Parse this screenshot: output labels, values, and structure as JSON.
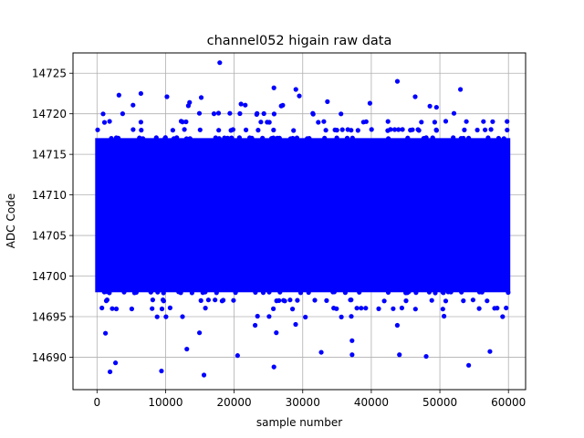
{
  "chart_data": {
    "type": "scatter",
    "title": "channel052 higain raw data",
    "xlabel": "sample number",
    "ylabel": "ADC Code",
    "xlim": [
      -3500,
      62500
    ],
    "ylim": [
      14686,
      14727.5
    ],
    "xticks": [
      0,
      10000,
      20000,
      30000,
      40000,
      50000,
      60000
    ],
    "yticks": [
      14690,
      14695,
      14700,
      14705,
      14710,
      14715,
      14720,
      14725
    ],
    "grid": true,
    "series": [
      {
        "color": "#0000ff",
        "marker": "circle",
        "x_range": [
          0,
          59999
        ],
        "dense_band": [
          14698,
          14717
        ],
        "outliers": [
          {
            "x": 17900,
            "y": 14726.3
          },
          {
            "x": 43800,
            "y": 14724.0
          },
          {
            "x": 25800,
            "y": 14723.2
          },
          {
            "x": 29000,
            "y": 14723.0
          },
          {
            "x": 53000,
            "y": 14723.0
          },
          {
            "x": 3200,
            "y": 14722.3
          },
          {
            "x": 6400,
            "y": 14722.5
          },
          {
            "x": 10200,
            "y": 14722.1
          },
          {
            "x": 15200,
            "y": 14722.0
          },
          {
            "x": 46400,
            "y": 14722.1
          },
          {
            "x": 29500,
            "y": 14722.2
          },
          {
            "x": 33600,
            "y": 14721.5
          },
          {
            "x": 39800,
            "y": 14721.3
          },
          {
            "x": 13500,
            "y": 14721.4
          },
          {
            "x": 21000,
            "y": 14721.2
          },
          {
            "x": 49500,
            "y": 14720.8
          },
          {
            "x": 1900,
            "y": 14688.2
          },
          {
            "x": 9400,
            "y": 14688.3
          },
          {
            "x": 15600,
            "y": 14687.8
          },
          {
            "x": 25800,
            "y": 14688.8
          },
          {
            "x": 54200,
            "y": 14689.0
          },
          {
            "x": 2700,
            "y": 14689.3
          },
          {
            "x": 20500,
            "y": 14690.2
          },
          {
            "x": 37200,
            "y": 14690.3
          },
          {
            "x": 44100,
            "y": 14690.3
          },
          {
            "x": 32700,
            "y": 14690.6
          },
          {
            "x": 13100,
            "y": 14691.0
          },
          {
            "x": 48000,
            "y": 14690.1
          },
          {
            "x": 57300,
            "y": 14690.7
          }
        ]
      }
    ]
  }
}
